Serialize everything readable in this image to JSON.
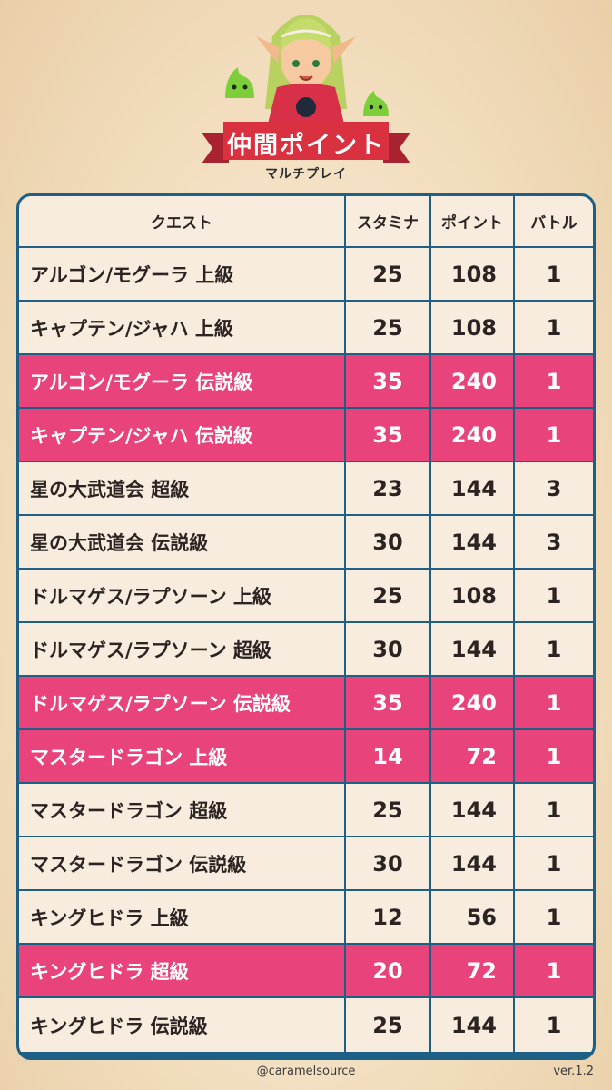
{
  "header": {
    "title": "仲間ポイント",
    "subtitle": "マルチプレイ",
    "colors": {
      "banner": "#d9313f",
      "banner_dark": "#a82230",
      "slime": "#7ccf3a",
      "hair": "#b8d160"
    }
  },
  "table": {
    "headers": {
      "quest": "クエスト",
      "stamina": "スタミナ",
      "points": "ポイント",
      "battles": "バトル"
    },
    "highlight_color": "#e8437a",
    "border_color": "#1d5f85",
    "rows": [
      {
        "quest": "アルゴン/モグーラ 上級",
        "stamina": "25",
        "points": "108",
        "battles": "1",
        "highlight": false
      },
      {
        "quest": "キャプテン/ジャハ 上級",
        "stamina": "25",
        "points": "108",
        "battles": "1",
        "highlight": false
      },
      {
        "quest": "アルゴン/モグーラ 伝説級",
        "stamina": "35",
        "points": "240",
        "battles": "1",
        "highlight": true
      },
      {
        "quest": "キャプテン/ジャハ 伝説級",
        "stamina": "35",
        "points": "240",
        "battles": "1",
        "highlight": true
      },
      {
        "quest": "星の大武道会 超級",
        "stamina": "23",
        "points": "144",
        "battles": "3",
        "highlight": false
      },
      {
        "quest": "星の大武道会 伝説級",
        "stamina": "30",
        "points": "144",
        "battles": "3",
        "highlight": false
      },
      {
        "quest": "ドルマゲス/ラプソーン 上級",
        "stamina": "25",
        "points": "108",
        "battles": "1",
        "highlight": false
      },
      {
        "quest": "ドルマゲス/ラプソーン 超級",
        "stamina": "30",
        "points": "144",
        "battles": "1",
        "highlight": false
      },
      {
        "quest": "ドルマゲス/ラプソーン 伝説級",
        "stamina": "35",
        "points": "240",
        "battles": "1",
        "highlight": true
      },
      {
        "quest": "マスタードラゴン 上級",
        "stamina": "14",
        "points": "72",
        "battles": "1",
        "highlight": true
      },
      {
        "quest": "マスタードラゴン 超級",
        "stamina": "25",
        "points": "144",
        "battles": "1",
        "highlight": false
      },
      {
        "quest": "マスタードラゴン 伝説級",
        "stamina": "30",
        "points": "144",
        "battles": "1",
        "highlight": false
      },
      {
        "quest": "キングヒドラ 上級",
        "stamina": "12",
        "points": "56",
        "battles": "1",
        "highlight": false
      },
      {
        "quest": "キングヒドラ 超級",
        "stamina": "20",
        "points": "72",
        "battles": "1",
        "highlight": true
      },
      {
        "quest": "キングヒドラ 伝説級",
        "stamina": "25",
        "points": "144",
        "battles": "1",
        "highlight": false
      }
    ]
  },
  "footer": {
    "handle": "@caramelsource",
    "version": "ver.1.2"
  }
}
